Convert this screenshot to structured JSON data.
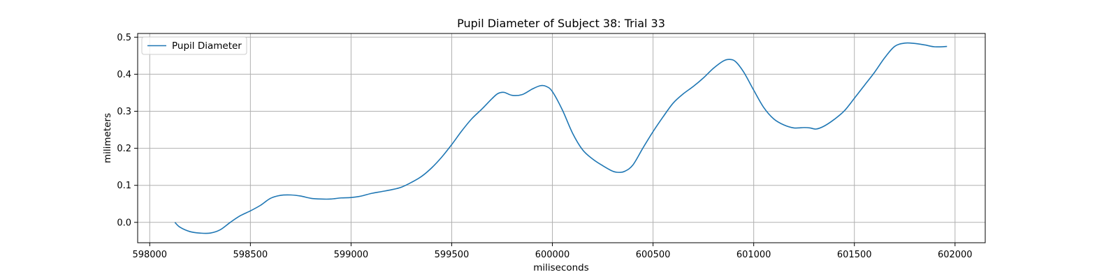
{
  "chart_data": {
    "type": "line",
    "title": "Pupil Diameter of Subject 38: Trial 33",
    "xlabel": "miliseconds",
    "ylabel": "milimeters",
    "xlim": [
      597940,
      602150
    ],
    "ylim": [
      -0.055,
      0.51
    ],
    "xticks": [
      598000,
      598500,
      599000,
      599500,
      600000,
      600500,
      601000,
      601500,
      602000
    ],
    "yticks": [
      0.0,
      0.1,
      0.2,
      0.3,
      0.4,
      0.5
    ],
    "xtick_labels": [
      "598000",
      "598500",
      "599000",
      "599500",
      "600000",
      "600500",
      "601000",
      "601500",
      "602000"
    ],
    "ytick_labels": [
      "0.0",
      "0.1",
      "0.2",
      "0.3",
      "0.4",
      "0.5"
    ],
    "grid": true,
    "legend_position": "upper-left",
    "series": [
      {
        "name": "Pupil Diameter",
        "color": "#1f77b4",
        "x": [
          598125,
          598150,
          598200,
          598250,
          598300,
          598350,
          598400,
          598450,
          598500,
          598550,
          598600,
          598650,
          598700,
          598750,
          598800,
          598850,
          598900,
          598950,
          599000,
          599050,
          599100,
          599150,
          599200,
          599250,
          599300,
          599350,
          599400,
          599450,
          599500,
          599550,
          599600,
          599650,
          599700,
          599730,
          599760,
          599800,
          599850,
          599900,
          599940,
          599970,
          600000,
          600050,
          600100,
          600150,
          600200,
          600250,
          600300,
          600330,
          600360,
          600400,
          600450,
          600500,
          600550,
          600600,
          600650,
          600700,
          600750,
          600800,
          600850,
          600880,
          600910,
          600950,
          601000,
          601050,
          601100,
          601150,
          601200,
          601250,
          601280,
          601310,
          601350,
          601400,
          601450,
          601500,
          601550,
          601600,
          601650,
          601700,
          601750,
          601800,
          601850,
          601900,
          601960
        ],
        "y": [
          0.0,
          -0.013,
          -0.025,
          -0.029,
          -0.029,
          -0.02,
          0.0,
          0.018,
          0.031,
          0.046,
          0.065,
          0.073,
          0.074,
          0.071,
          0.065,
          0.063,
          0.063,
          0.066,
          0.067,
          0.071,
          0.078,
          0.083,
          0.088,
          0.095,
          0.108,
          0.124,
          0.147,
          0.176,
          0.21,
          0.247,
          0.28,
          0.306,
          0.334,
          0.348,
          0.351,
          0.343,
          0.345,
          0.36,
          0.369,
          0.367,
          0.353,
          0.303,
          0.241,
          0.196,
          0.171,
          0.153,
          0.138,
          0.135,
          0.138,
          0.155,
          0.201,
          0.245,
          0.285,
          0.322,
          0.347,
          0.367,
          0.39,
          0.416,
          0.436,
          0.44,
          0.434,
          0.406,
          0.357,
          0.31,
          0.279,
          0.263,
          0.255,
          0.256,
          0.255,
          0.252,
          0.26,
          0.278,
          0.301,
          0.335,
          0.37,
          0.405,
          0.444,
          0.475,
          0.484,
          0.483,
          0.479,
          0.474,
          0.475
        ]
      }
    ]
  }
}
